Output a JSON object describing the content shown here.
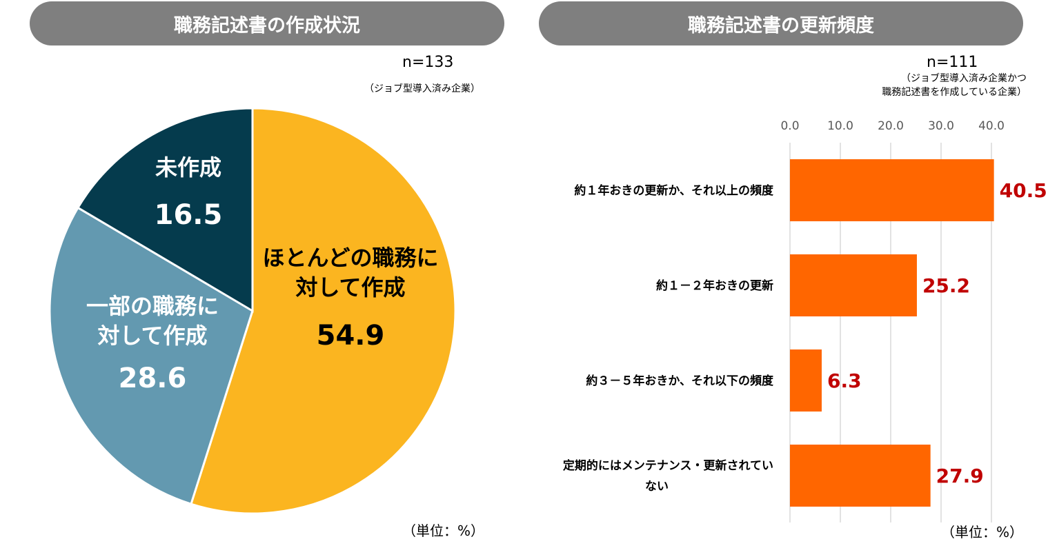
{
  "pie_panel": {
    "title": "職務記述書の作成状況",
    "n": "n=133",
    "subnote": "（ジョブ型導入済み企業）",
    "unit": "（単位：%）"
  },
  "bar_panel": {
    "title": "職務記述書の更新頻度",
    "n": "n=111",
    "subnote_line1": "（ジョブ型導入済み企業かつ",
    "subnote_line2": "職務記述書を作成している企業）",
    "unit": "（単位：%）"
  },
  "chart_data": [
    {
      "type": "pie",
      "title": "職務記述書の作成状況",
      "slices": [
        {
          "label_lines": [
            "ほとんどの職務に",
            "対して作成"
          ],
          "value": 54.9,
          "color": "#fbb520"
        },
        {
          "label_lines": [
            "一部の職務に",
            "対して作成"
          ],
          "value": 28.6,
          "color": "#6399b0"
        },
        {
          "label_lines": [
            "未作成"
          ],
          "value": 16.5,
          "color": "#053b4d"
        }
      ]
    },
    {
      "type": "bar",
      "orientation": "horizontal",
      "title": "職務記述書の更新頻度",
      "categories": [
        [
          "約１年おきの更新か、それ以上の頻度"
        ],
        [
          "約１－２年おきの更新"
        ],
        [
          "約３－５年おきか、それ以下の頻度"
        ],
        [
          "定期的にはメンテナンス・更新されてい",
          "ない"
        ]
      ],
      "values": [
        40.5,
        25.2,
        6.3,
        27.9
      ],
      "data_labels": [
        "40.5",
        "25.2",
        "6.3",
        "27.9"
      ],
      "ticks": [
        "0.0",
        "10.0",
        "20.0",
        "30.0",
        "40.0"
      ],
      "xlim": [
        0,
        40
      ],
      "bar_color": "#ff6600",
      "label_color": "#c00000",
      "grid": true
    }
  ]
}
